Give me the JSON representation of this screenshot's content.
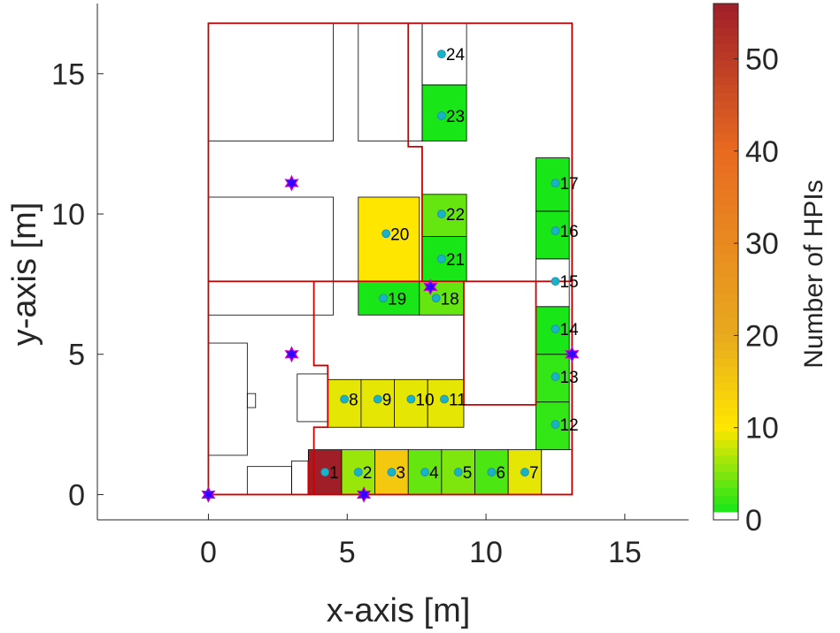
{
  "chart_data": {
    "type": "heatmap",
    "title": "",
    "xlabel": "x-axis [m]",
    "ylabel": "y-axis [m]",
    "xlim": [
      -4,
      17.3
    ],
    "ylim": [
      -0.9,
      17.5
    ],
    "xticks": [
      0,
      5,
      10,
      15
    ],
    "yticks": [
      0,
      5,
      10,
      15
    ],
    "grid": false,
    "colorbar": {
      "label": "Number of HPIs",
      "range": [
        0,
        56
      ],
      "ticks": [
        0,
        10,
        20,
        30,
        40,
        50
      ],
      "colors": [
        "#ffffff",
        "#00e61a",
        "#ffe600",
        "#e8aa1e",
        "#e86a20",
        "#a01e28"
      ]
    },
    "walls": [
      [
        [
          0,
          0
        ],
        [
          0,
          16.8
        ],
        [
          13.1,
          16.8
        ],
        [
          13.1,
          0
        ],
        [
          0,
          0
        ]
      ],
      [
        [
          0,
          7.6
        ],
        [
          13.1,
          7.6
        ]
      ],
      [
        [
          3.8,
          7.6
        ],
        [
          3.8,
          4.6
        ],
        [
          4.3,
          4.6
        ],
        [
          4.3,
          2.4
        ],
        [
          3.8,
          2.4
        ],
        [
          3.8,
          0
        ]
      ],
      [
        [
          3.6,
          1.2
        ],
        [
          3.6,
          0
        ]
      ],
      [
        [
          7.7,
          7.6
        ],
        [
          7.7,
          12.4
        ],
        [
          7.2,
          12.4
        ],
        [
          7.2,
          16.8
        ]
      ],
      [
        [
          9.2,
          7.6
        ],
        [
          9.2,
          3.2
        ],
        [
          11.8,
          3.2
        ],
        [
          11.8,
          7.6
        ]
      ]
    ],
    "rooms": [
      {
        "x": 0,
        "y": 12.6,
        "w": 4.5,
        "h": 4.2
      },
      {
        "x": 5.4,
        "y": 12.6,
        "w": 2.3,
        "h": 4.2
      },
      {
        "x": 0,
        "y": 6.4,
        "w": 4.5,
        "h": 4.2
      },
      {
        "x": 0,
        "y": 1.4,
        "w": 1.4,
        "h": 4.0
      },
      {
        "x": 1.4,
        "y": 3.1,
        "w": 0.3,
        "h": 0.5
      },
      {
        "x": 3.2,
        "y": 2.6,
        "w": 1.1,
        "h": 1.7
      },
      {
        "x": 1.4,
        "y": 0,
        "w": 1.6,
        "h": 1.0
      },
      {
        "x": 3.0,
        "y": 0,
        "w": 0.6,
        "h": 1.2
      },
      {
        "x": 7.7,
        "y": 14.6,
        "w": 1.6,
        "h": 2.2
      }
    ],
    "cells": [
      {
        "x": 3.6,
        "y": 0,
        "w": 1.2,
        "h": 1.6,
        "hpi": 56
      },
      {
        "x": 4.8,
        "y": 0,
        "w": 1.2,
        "h": 1.6,
        "hpi": 6
      },
      {
        "x": 6.0,
        "y": 0,
        "w": 1.2,
        "h": 1.6,
        "hpi": 15
      },
      {
        "x": 7.2,
        "y": 0,
        "w": 1.2,
        "h": 1.6,
        "hpi": 4
      },
      {
        "x": 8.4,
        "y": 0,
        "w": 1.2,
        "h": 1.6,
        "hpi": 5
      },
      {
        "x": 9.6,
        "y": 0,
        "w": 1.2,
        "h": 1.6,
        "hpi": 3
      },
      {
        "x": 10.8,
        "y": 0,
        "w": 1.2,
        "h": 1.6,
        "hpi": 9
      },
      {
        "x": 12.0,
        "y": 0,
        "w": 1.1,
        "h": 1.6,
        "hpi": 0
      },
      {
        "x": 4.3,
        "y": 2.4,
        "w": 1.2,
        "h": 1.7,
        "hpi": 9
      },
      {
        "x": 5.5,
        "y": 2.4,
        "w": 1.2,
        "h": 1.7,
        "hpi": 9
      },
      {
        "x": 6.7,
        "y": 2.4,
        "w": 1.2,
        "h": 1.7,
        "hpi": 9
      },
      {
        "x": 7.9,
        "y": 2.4,
        "w": 1.3,
        "h": 1.7,
        "hpi": 9
      },
      {
        "x": 11.8,
        "y": 1.6,
        "w": 1.2,
        "h": 1.7,
        "hpi": 2
      },
      {
        "x": 11.8,
        "y": 3.3,
        "w": 1.2,
        "h": 1.7,
        "hpi": 2
      },
      {
        "x": 11.8,
        "y": 5.0,
        "w": 1.2,
        "h": 1.7,
        "hpi": 1
      },
      {
        "x": 11.8,
        "y": 6.7,
        "w": 1.2,
        "h": 1.7,
        "hpi": 0
      },
      {
        "x": 11.8,
        "y": 8.4,
        "w": 1.2,
        "h": 1.7,
        "hpi": 1
      },
      {
        "x": 11.8,
        "y": 10.1,
        "w": 1.2,
        "h": 1.9,
        "hpi": 1
      },
      {
        "x": 5.4,
        "y": 6.4,
        "w": 2.2,
        "h": 1.2,
        "hpi": 1
      },
      {
        "x": 7.6,
        "y": 6.4,
        "w": 1.6,
        "h": 1.2,
        "hpi": 4
      },
      {
        "x": 5.4,
        "y": 7.6,
        "w": 2.2,
        "h": 3.0,
        "hpi": 10
      },
      {
        "x": 7.7,
        "y": 7.6,
        "w": 1.6,
        "h": 1.6,
        "hpi": 1
      },
      {
        "x": 7.7,
        "y": 9.2,
        "w": 1.6,
        "h": 1.5,
        "hpi": 4
      },
      {
        "x": 7.7,
        "y": 12.6,
        "w": 1.6,
        "h": 2.0,
        "hpi": 1
      }
    ],
    "nodes": [
      {
        "label": "1",
        "x": 4.2,
        "y": 0.8
      },
      {
        "label": "2",
        "x": 5.4,
        "y": 0.8
      },
      {
        "label": "3",
        "x": 6.6,
        "y": 0.8
      },
      {
        "label": "4",
        "x": 7.8,
        "y": 0.8
      },
      {
        "label": "5",
        "x": 9.0,
        "y": 0.8
      },
      {
        "label": "6",
        "x": 10.2,
        "y": 0.8
      },
      {
        "label": "7",
        "x": 11.4,
        "y": 0.8
      },
      {
        "label": "8",
        "x": 4.9,
        "y": 3.4
      },
      {
        "label": "9",
        "x": 6.1,
        "y": 3.4
      },
      {
        "label": "10",
        "x": 7.3,
        "y": 3.4
      },
      {
        "label": "11",
        "x": 8.5,
        "y": 3.4
      },
      {
        "label": "12",
        "x": 12.5,
        "y": 2.5
      },
      {
        "label": "13",
        "x": 12.5,
        "y": 4.2
      },
      {
        "label": "14",
        "x": 12.5,
        "y": 5.9
      },
      {
        "label": "15",
        "x": 12.5,
        "y": 7.6
      },
      {
        "label": "16",
        "x": 12.5,
        "y": 9.4
      },
      {
        "label": "17",
        "x": 12.5,
        "y": 11.1
      },
      {
        "label": "18",
        "x": 8.2,
        "y": 7.0
      },
      {
        "label": "19",
        "x": 6.3,
        "y": 7.0
      },
      {
        "label": "20",
        "x": 6.4,
        "y": 9.3
      },
      {
        "label": "21",
        "x": 8.4,
        "y": 8.4
      },
      {
        "label": "22",
        "x": 8.4,
        "y": 10.0
      },
      {
        "label": "23",
        "x": 8.4,
        "y": 13.5
      },
      {
        "label": "24",
        "x": 8.4,
        "y": 15.7
      }
    ],
    "anchors": [
      {
        "x": 0,
        "y": 0
      },
      {
        "x": 5.6,
        "y": 0
      },
      {
        "x": 3.0,
        "y": 5.0
      },
      {
        "x": 3.0,
        "y": 11.1
      },
      {
        "x": 8.0,
        "y": 7.4
      },
      {
        "x": 13.1,
        "y": 5.0
      }
    ],
    "colors": {
      "wall": "#cc0000",
      "room": "#000000",
      "node": "#19b3c8",
      "anchor": "#3300ff",
      "axis": "#262626"
    }
  }
}
